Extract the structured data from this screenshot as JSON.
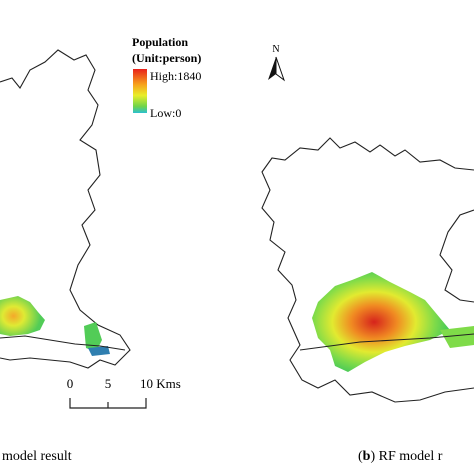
{
  "legend": {
    "title": "Population",
    "unit": "(Unit:person)",
    "high": "High:1840",
    "low": "Low:0"
  },
  "north": "N",
  "scale_bar": {
    "labels": [
      "0",
      "5",
      "10 Kms"
    ]
  },
  "captions": [
    {
      "text": "model result"
    },
    {
      "open": "(",
      "letter": "b",
      "text": ") RF model r"
    }
  ]
}
